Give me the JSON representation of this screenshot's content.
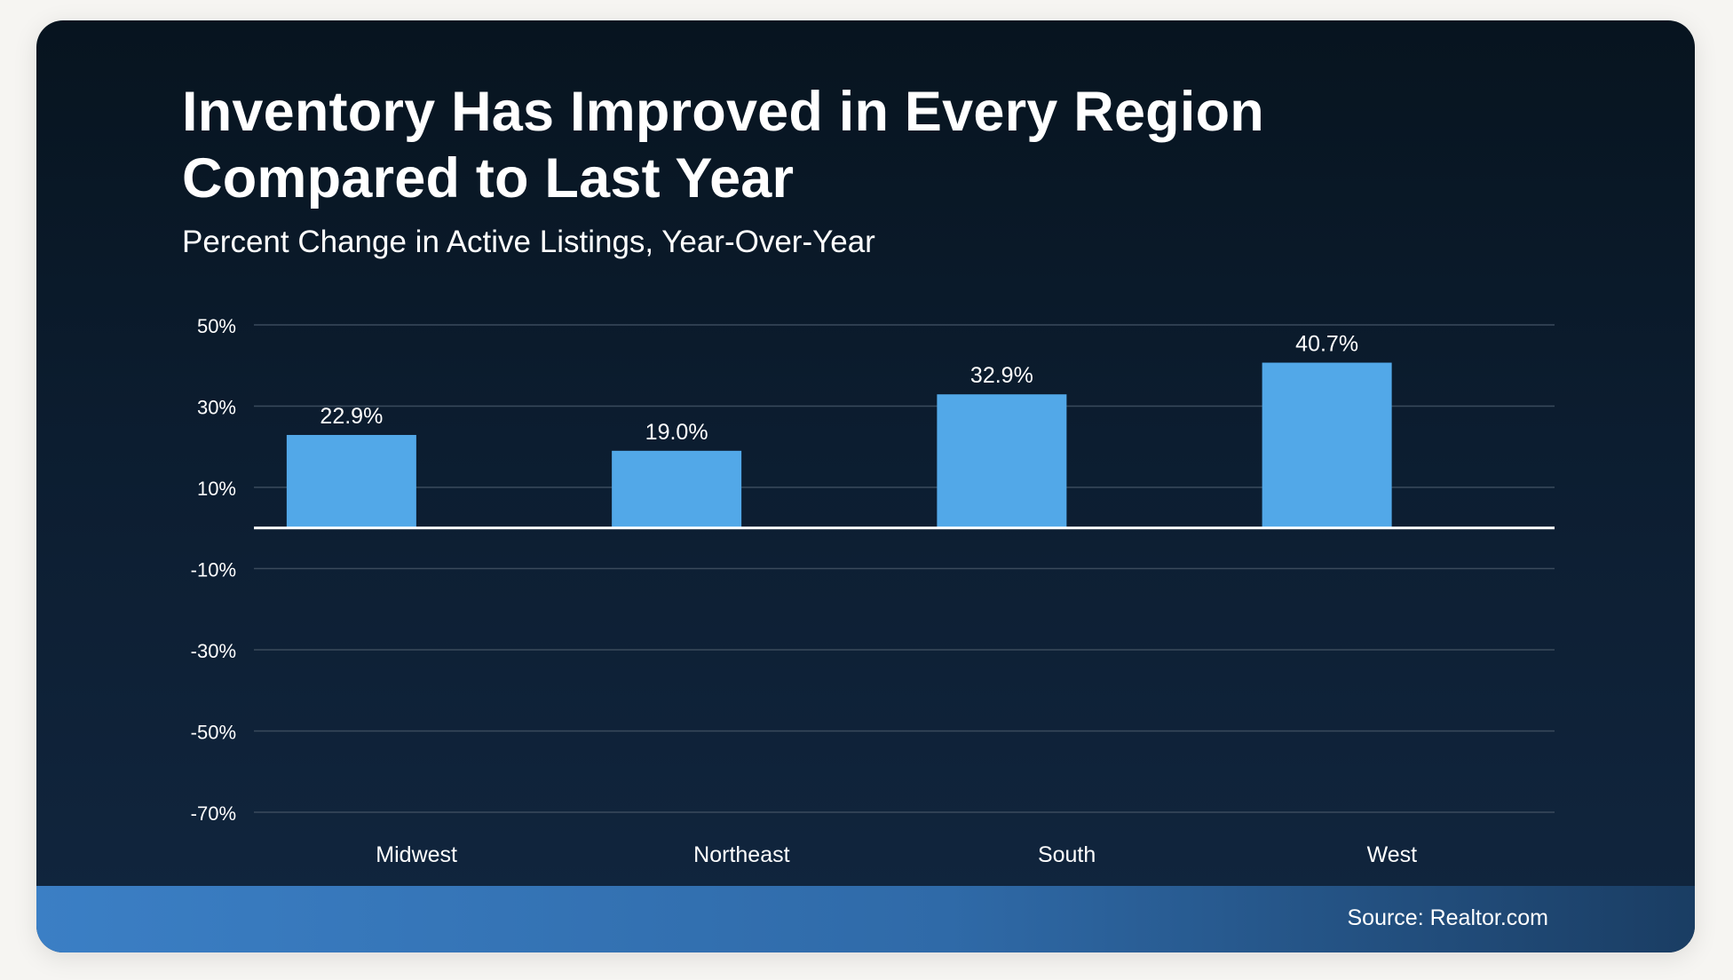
{
  "header": {
    "title_line1": "Inventory Has Improved in Every Region",
    "title_line2": "Compared to Last Year",
    "subtitle": "Percent Change in Active Listings, Year-Over-Year"
  },
  "footer": {
    "source": "Source: Realtor.com"
  },
  "colors": {
    "bar": "#52a8e8",
    "gridline": "#3a4a5c",
    "zero_line": "#ffffff",
    "text": "#ffffff"
  },
  "chart_data": {
    "type": "bar",
    "title": "Inventory Has Improved in Every Region Compared to Last Year",
    "subtitle": "Percent Change in Active Listings, Year-Over-Year",
    "xlabel": "",
    "ylabel": "",
    "categories": [
      "Midwest",
      "Northeast",
      "South",
      "West"
    ],
    "values": [
      22.9,
      19.0,
      32.9,
      40.7
    ],
    "data_labels": [
      "22.9%",
      "19.0%",
      "32.9%",
      "40.7%"
    ],
    "ylim": [
      -70,
      50
    ],
    "yticks": [
      50,
      30,
      10,
      -10,
      -30,
      -50,
      -70
    ],
    "ytick_labels": [
      "50%",
      "30%",
      "10%",
      "-10%",
      "-30%",
      "-50%",
      "-70%"
    ],
    "grid": true,
    "legend": "none"
  }
}
